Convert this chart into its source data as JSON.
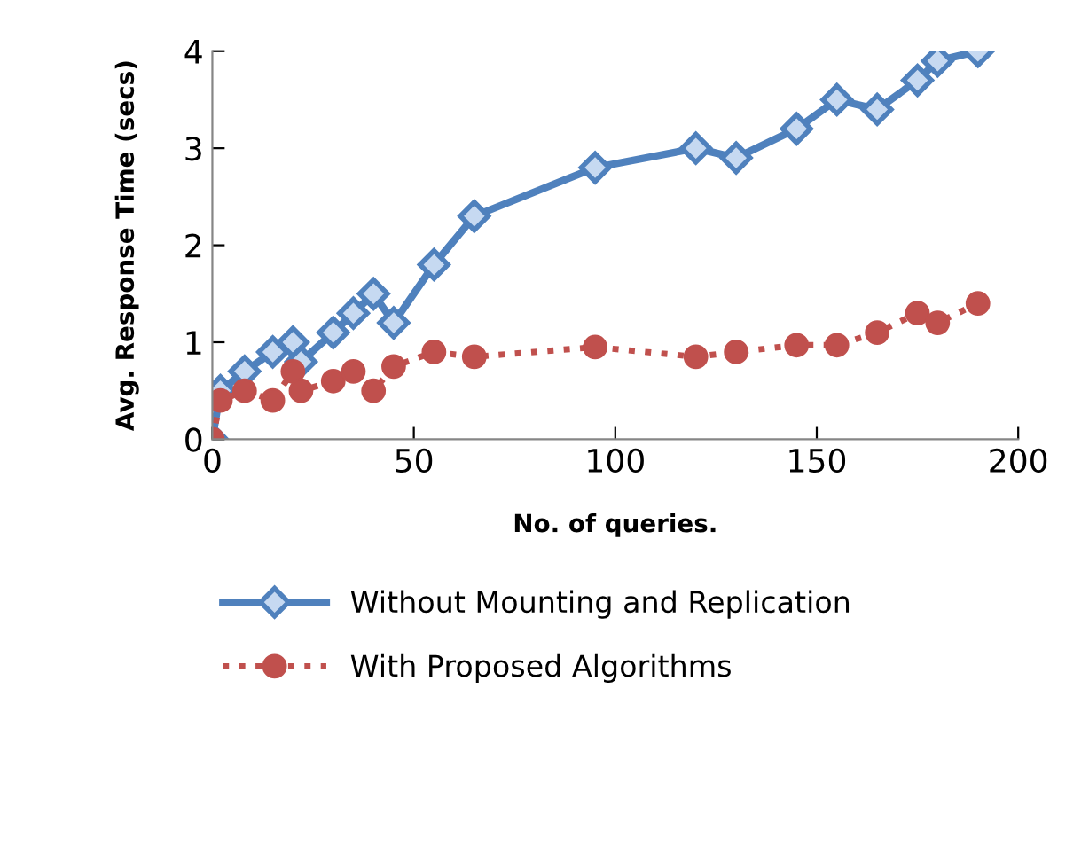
{
  "chart_data": {
    "type": "line",
    "xlabel": "No. of queries.",
    "ylabel": "Avg. Response Time (secs)",
    "xlim": [
      0,
      200
    ],
    "xticks": [
      0,
      50,
      100,
      150,
      200
    ],
    "ylim": [
      0,
      4
    ],
    "yticks": [
      0,
      1,
      2,
      3,
      4
    ],
    "grid": false,
    "legend": "bottom",
    "series": [
      {
        "name": "Without Mounting and Replication",
        "color": "#4f81bd",
        "marker": "diamond",
        "line_style": "solid",
        "x": [
          0,
          2,
          8,
          15,
          20,
          22,
          30,
          35,
          40,
          45,
          55,
          65,
          95,
          120,
          130,
          145,
          155,
          165,
          175,
          180,
          190
        ],
        "values": [
          0,
          0.5,
          0.7,
          0.9,
          1.0,
          0.8,
          1.1,
          1.3,
          1.5,
          1.2,
          1.8,
          2.3,
          2.8,
          3.0,
          2.9,
          3.2,
          3.5,
          3.4,
          3.7,
          3.9,
          4.0
        ]
      },
      {
        "name": "With Proposed Algorithms",
        "color": "#c0504d",
        "marker": "circle",
        "line_style": "dotted",
        "x": [
          0,
          2,
          8,
          15,
          20,
          22,
          30,
          35,
          40,
          45,
          55,
          65,
          95,
          120,
          130,
          145,
          155,
          165,
          175,
          180,
          190
        ],
        "values": [
          0,
          0.4,
          0.5,
          0.4,
          0.7,
          0.5,
          0.6,
          0.7,
          0.5,
          0.75,
          0.9,
          0.85,
          0.95,
          0.85,
          0.9,
          0.97,
          0.97,
          1.1,
          1.3,
          1.2,
          1.4
        ]
      }
    ]
  }
}
